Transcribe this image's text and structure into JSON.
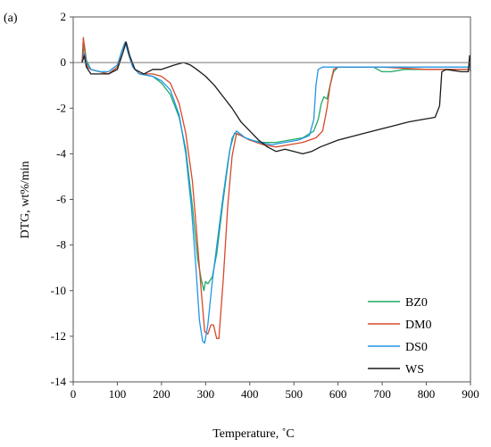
{
  "chart_data": {
    "type": "line",
    "panel_label": "(a)",
    "title": "",
    "xlabel": "Temperature, ˚C",
    "ylabel": "DTG, wt%/min",
    "xlim": [
      0,
      900
    ],
    "ylim": [
      -14,
      2
    ],
    "x_ticks": [
      0,
      100,
      200,
      300,
      400,
      500,
      600,
      700,
      800,
      900
    ],
    "y_ticks": [
      2,
      0,
      -2,
      -4,
      -6,
      -8,
      -10,
      -12,
      -14
    ],
    "grid": false,
    "legend": "bottom-right",
    "series": [
      {
        "name": "BZ0",
        "color": "#1fa866",
        "points": [
          [
            20,
            0
          ],
          [
            25,
            0.8
          ],
          [
            30,
            0.1
          ],
          [
            40,
            -0.3
          ],
          [
            60,
            -0.4
          ],
          [
            80,
            -0.5
          ],
          [
            100,
            -0.2
          ],
          [
            110,
            0.5
          ],
          [
            118,
            0.9
          ],
          [
            125,
            0.4
          ],
          [
            135,
            -0.2
          ],
          [
            150,
            -0.5
          ],
          [
            180,
            -0.6
          ],
          [
            200,
            -0.9
          ],
          [
            220,
            -1.4
          ],
          [
            240,
            -2.4
          ],
          [
            255,
            -3.8
          ],
          [
            270,
            -6.3
          ],
          [
            282,
            -8.6
          ],
          [
            290,
            -9.5
          ],
          [
            296,
            -10
          ],
          [
            300,
            -9.6
          ],
          [
            305,
            -9.7
          ],
          [
            315,
            -9.4
          ],
          [
            325,
            -8.4
          ],
          [
            340,
            -6.0
          ],
          [
            355,
            -3.8
          ],
          [
            365,
            -3.1
          ],
          [
            380,
            -3.2
          ],
          [
            400,
            -3.4
          ],
          [
            430,
            -3.5
          ],
          [
            460,
            -3.5
          ],
          [
            490,
            -3.4
          ],
          [
            520,
            -3.3
          ],
          [
            545,
            -3.0
          ],
          [
            555,
            -2.5
          ],
          [
            562,
            -1.8
          ],
          [
            568,
            -1.5
          ],
          [
            575,
            -1.6
          ],
          [
            582,
            -1.0
          ],
          [
            590,
            -0.4
          ],
          [
            600,
            -0.2
          ],
          [
            650,
            -0.2
          ],
          [
            680,
            -0.2
          ],
          [
            700,
            -0.4
          ],
          [
            720,
            -0.4
          ],
          [
            750,
            -0.3
          ],
          [
            800,
            -0.3
          ],
          [
            900,
            -0.3
          ]
        ]
      },
      {
        "name": "DM0",
        "color": "#d9482b",
        "points": [
          [
            20,
            0
          ],
          [
            23,
            1.1
          ],
          [
            27,
            0.4
          ],
          [
            32,
            -0.2
          ],
          [
            40,
            -0.3
          ],
          [
            60,
            -0.4
          ],
          [
            80,
            -0.5
          ],
          [
            100,
            -0.2
          ],
          [
            110,
            0.5
          ],
          [
            118,
            0.9
          ],
          [
            125,
            0.4
          ],
          [
            135,
            -0.2
          ],
          [
            150,
            -0.5
          ],
          [
            180,
            -0.5
          ],
          [
            200,
            -0.6
          ],
          [
            220,
            -0.9
          ],
          [
            240,
            -1.8
          ],
          [
            255,
            -3.1
          ],
          [
            270,
            -5.2
          ],
          [
            280,
            -7.5
          ],
          [
            290,
            -10.0
          ],
          [
            298,
            -11.8
          ],
          [
            305,
            -11.9
          ],
          [
            312,
            -11.5
          ],
          [
            318,
            -11.5
          ],
          [
            325,
            -12.1
          ],
          [
            330,
            -12.1
          ],
          [
            340,
            -9.5
          ],
          [
            350,
            -6.3
          ],
          [
            360,
            -4.1
          ],
          [
            370,
            -3.1
          ],
          [
            380,
            -3.2
          ],
          [
            400,
            -3.4
          ],
          [
            430,
            -3.6
          ],
          [
            460,
            -3.7
          ],
          [
            490,
            -3.6
          ],
          [
            520,
            -3.5
          ],
          [
            550,
            -3.3
          ],
          [
            565,
            -3.0
          ],
          [
            575,
            -2.0
          ],
          [
            582,
            -1.0
          ],
          [
            590,
            -0.3
          ],
          [
            600,
            -0.2
          ],
          [
            700,
            -0.2
          ],
          [
            800,
            -0.3
          ],
          [
            900,
            -0.3
          ]
        ]
      },
      {
        "name": "DS0",
        "color": "#2196e6",
        "points": [
          [
            20,
            0
          ],
          [
            25,
            0.4
          ],
          [
            30,
            0
          ],
          [
            40,
            -0.3
          ],
          [
            60,
            -0.4
          ],
          [
            80,
            -0.4
          ],
          [
            100,
            -0.1
          ],
          [
            110,
            0.5
          ],
          [
            118,
            0.9
          ],
          [
            125,
            0.4
          ],
          [
            135,
            -0.2
          ],
          [
            150,
            -0.5
          ],
          [
            180,
            -0.6
          ],
          [
            200,
            -0.8
          ],
          [
            220,
            -1.2
          ],
          [
            240,
            -2.3
          ],
          [
            255,
            -4.0
          ],
          [
            268,
            -6.4
          ],
          [
            278,
            -9.0
          ],
          [
            286,
            -11.3
          ],
          [
            293,
            -12.2
          ],
          [
            298,
            -12.3
          ],
          [
            305,
            -11.5
          ],
          [
            315,
            -9.6
          ],
          [
            328,
            -7.6
          ],
          [
            340,
            -5.8
          ],
          [
            350,
            -4.4
          ],
          [
            360,
            -3.3
          ],
          [
            370,
            -3.0
          ],
          [
            390,
            -3.3
          ],
          [
            420,
            -3.5
          ],
          [
            450,
            -3.6
          ],
          [
            480,
            -3.5
          ],
          [
            510,
            -3.4
          ],
          [
            535,
            -3.2
          ],
          [
            545,
            -2.5
          ],
          [
            550,
            -1.0
          ],
          [
            555,
            -0.3
          ],
          [
            565,
            -0.2
          ],
          [
            600,
            -0.2
          ],
          [
            700,
            -0.2
          ],
          [
            800,
            -0.2
          ],
          [
            900,
            -0.2
          ]
        ]
      },
      {
        "name": "WS",
        "color": "#1a1a1a",
        "points": [
          [
            20,
            0
          ],
          [
            25,
            0.3
          ],
          [
            30,
            -0.2
          ],
          [
            40,
            -0.5
          ],
          [
            60,
            -0.5
          ],
          [
            80,
            -0.5
          ],
          [
            100,
            -0.3
          ],
          [
            112,
            0.4
          ],
          [
            120,
            0.9
          ],
          [
            128,
            0.3
          ],
          [
            140,
            -0.3
          ],
          [
            160,
            -0.5
          ],
          [
            180,
            -0.3
          ],
          [
            200,
            -0.3
          ],
          [
            230,
            -0.1
          ],
          [
            250,
            0
          ],
          [
            265,
            -0.1
          ],
          [
            280,
            -0.3
          ],
          [
            300,
            -0.6
          ],
          [
            320,
            -1.0
          ],
          [
            340,
            -1.5
          ],
          [
            360,
            -2.0
          ],
          [
            380,
            -2.6
          ],
          [
            400,
            -3.0
          ],
          [
            420,
            -3.4
          ],
          [
            440,
            -3.7
          ],
          [
            460,
            -3.9
          ],
          [
            480,
            -3.8
          ],
          [
            500,
            -3.9
          ],
          [
            520,
            -4.0
          ],
          [
            540,
            -3.9
          ],
          [
            560,
            -3.7
          ],
          [
            600,
            -3.4
          ],
          [
            640,
            -3.2
          ],
          [
            680,
            -3.0
          ],
          [
            720,
            -2.8
          ],
          [
            760,
            -2.6
          ],
          [
            790,
            -2.5
          ],
          [
            820,
            -2.4
          ],
          [
            830,
            -1.9
          ],
          [
            835,
            -0.4
          ],
          [
            845,
            -0.3
          ],
          [
            880,
            -0.4
          ],
          [
            895,
            -0.4
          ],
          [
            898,
            0.3
          ],
          [
            900,
            -0.4
          ]
        ]
      }
    ]
  }
}
